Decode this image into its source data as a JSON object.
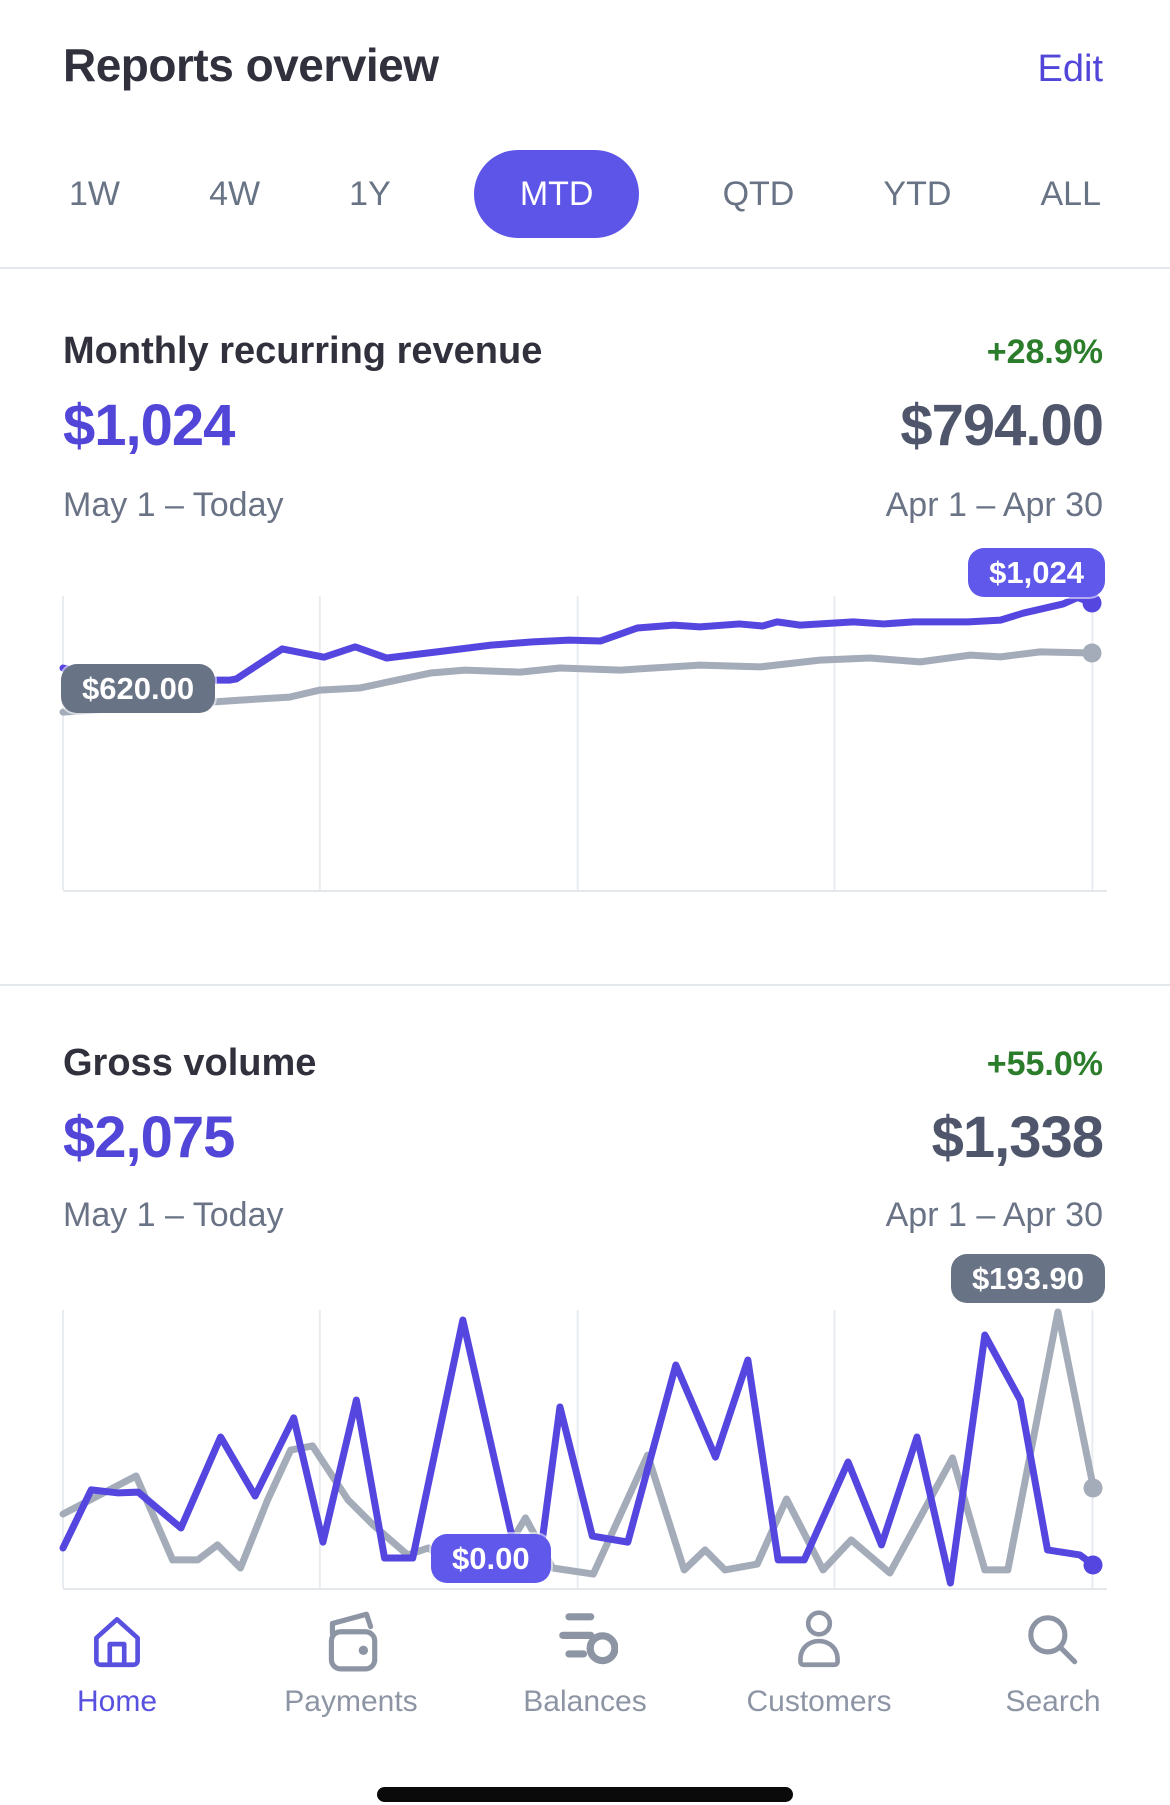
{
  "header": {
    "title": "Reports overview",
    "edit": "Edit"
  },
  "tabs": [
    {
      "label": "1W",
      "active": false
    },
    {
      "label": "4W",
      "active": false
    },
    {
      "label": "1Y",
      "active": false
    },
    {
      "label": "MTD",
      "active": true
    },
    {
      "label": "QTD",
      "active": false
    },
    {
      "label": "YTD",
      "active": false
    },
    {
      "label": "ALL",
      "active": false
    }
  ],
  "colors": {
    "accent_purple": "#5246d9",
    "pill_purple": "#5d55e7",
    "line_purple": "#5546e0",
    "line_gray": "#a3acb8",
    "tooltip_purple": "#5f58ea",
    "tooltip_gray": "#697386",
    "positive_green": "#2b7c2b",
    "nav_active": "#5851df",
    "nav_inactive": "#8d95a5"
  },
  "cards": [
    {
      "title": "Monthly recurring revenue",
      "trend": "+28.9%",
      "current_value": "$1,024",
      "previous_value": "$794.00",
      "current_period": "May 1 – Today",
      "previous_period": "Apr 1 – Apr 30",
      "tooltips": {
        "current": {
          "label": "$1,024"
        },
        "previous": {
          "label": "$620.00"
        }
      }
    },
    {
      "title": "Gross volume",
      "trend": "+55.0%",
      "current_value": "$2,075",
      "previous_value": "$1,338",
      "current_period": "May 1 – Today",
      "previous_period": "Apr 1 – Apr 30",
      "tooltips": {
        "current": {
          "label": "$0.00"
        },
        "previous": {
          "label": "$193.90"
        }
      }
    }
  ],
  "chart_data": [
    {
      "type": "line",
      "title": "Monthly recurring revenue",
      "note": "No axis labels shown; points are percent of plot box, y measured from top. Current MTD ends at $1,024; previous period starts at $620.00.",
      "gridlines_x_pct": [
        0,
        24.6,
        49.3,
        73.9,
        98.6
      ],
      "series": [
        {
          "name": "May 1 – Today",
          "color": "#5546e0",
          "end_label": "$1,024",
          "points_pct": [
            [
              0,
              24.5
            ],
            [
              2,
              26
            ],
            [
              5,
              27.5
            ],
            [
              10,
              28.6
            ],
            [
              16,
              28.6
            ],
            [
              16.6,
              28.2
            ],
            [
              21,
              18
            ],
            [
              25,
              20.8
            ],
            [
              28,
              17.3
            ],
            [
              31,
              21.1
            ],
            [
              36.5,
              18.7
            ],
            [
              41,
              16.7
            ],
            [
              45,
              15.6
            ],
            [
              48.5,
              15
            ],
            [
              51.5,
              15.3
            ],
            [
              55,
              10.9
            ],
            [
              58.5,
              9.9
            ],
            [
              61,
              10.5
            ],
            [
              64.8,
              9.5
            ],
            [
              67,
              10.2
            ],
            [
              68.4,
              8.8
            ],
            [
              70.6,
              9.9
            ],
            [
              75.7,
              8.8
            ],
            [
              78.6,
              9.5
            ],
            [
              81.5,
              8.8
            ],
            [
              86.7,
              8.8
            ],
            [
              89.8,
              8.2
            ],
            [
              92,
              5.8
            ],
            [
              95.8,
              2.7
            ],
            [
              97.2,
              0.5
            ],
            [
              98.6,
              2.4
            ]
          ]
        },
        {
          "name": "Apr 1 – Apr 30",
          "color": "#a3acb8",
          "start_label": "$620.00",
          "points_pct": [
            [
              0,
              39.5
            ],
            [
              17,
              35.4
            ],
            [
              21.7,
              34.4
            ],
            [
              24.6,
              32
            ],
            [
              28.4,
              31.3
            ],
            [
              35.2,
              26.2
            ],
            [
              38.5,
              25.2
            ],
            [
              43.8,
              25.9
            ],
            [
              47.6,
              24.5
            ],
            [
              53.4,
              25.2
            ],
            [
              61,
              23.5
            ],
            [
              66.8,
              24.1
            ],
            [
              72.5,
              21.8
            ],
            [
              77.3,
              21.1
            ],
            [
              82.1,
              22.4
            ],
            [
              86.9,
              20.1
            ],
            [
              89.8,
              20.7
            ],
            [
              93.6,
              19
            ],
            [
              98.6,
              19.4
            ]
          ]
        }
      ]
    },
    {
      "type": "line",
      "title": "Gross volume",
      "note": "Spiky daily series; current day value $0.00; previous series peak near right labeled $193.90.",
      "gridlines_x_pct": [
        0,
        24.6,
        49.3,
        73.9,
        98.6
      ],
      "series": [
        {
          "name": "May 1 – Today",
          "color": "#5546e0",
          "end_label": "$0.00",
          "points_pct": [
            [
              0,
              85.6
            ],
            [
              2.7,
              64.7
            ],
            [
              5.3,
              65.8
            ],
            [
              7.2,
              65.5
            ],
            [
              11.3,
              78.4
            ],
            [
              15.1,
              45.7
            ],
            [
              18.4,
              66.9
            ],
            [
              22.1,
              38.8
            ],
            [
              24.9,
              83.5
            ],
            [
              28.1,
              32.4
            ],
            [
              30.8,
              89.2
            ],
            [
              33.5,
              89.2
            ],
            [
              38.3,
              3.6
            ],
            [
              43.6,
              91.4
            ],
            [
              45.6,
              91.4
            ],
            [
              47.6,
              34.9
            ],
            [
              50.7,
              81.3
            ],
            [
              54.1,
              83.5
            ],
            [
              58.7,
              19.8
            ],
            [
              62.5,
              52.9
            ],
            [
              65.6,
              18
            ],
            [
              68.5,
              89.9
            ],
            [
              71,
              89.9
            ],
            [
              75.2,
              54.7
            ],
            [
              78.4,
              84.5
            ],
            [
              81.8,
              45.7
            ],
            [
              85,
              98.2
            ],
            [
              88.3,
              9
            ],
            [
              91.7,
              32.4
            ],
            [
              94.3,
              86.3
            ],
            [
              97.4,
              88.1
            ],
            [
              98.7,
              91.7
            ]
          ]
        },
        {
          "name": "Apr 1 – Apr 30",
          "color": "#a3acb8",
          "peak_label": "$193.90",
          "points_pct": [
            [
              0,
              73.4
            ],
            [
              7,
              59.7
            ],
            [
              10.5,
              89.9
            ],
            [
              12.9,
              89.9
            ],
            [
              14.8,
              84.5
            ],
            [
              17,
              92.8
            ],
            [
              19.6,
              68.3
            ],
            [
              21.8,
              50.4
            ],
            [
              23.9,
              48.9
            ],
            [
              27.3,
              68.3
            ],
            [
              29.7,
              77.3
            ],
            [
              33,
              88.1
            ],
            [
              35,
              85.6
            ],
            [
              37.8,
              92.8
            ],
            [
              41.2,
              94.2
            ],
            [
              44.3,
              74.8
            ],
            [
              46.9,
              92.8
            ],
            [
              50.8,
              95
            ],
            [
              56,
              52.2
            ],
            [
              59.5,
              93.5
            ],
            [
              61.5,
              86.3
            ],
            [
              63.4,
              93.5
            ],
            [
              66.5,
              91.4
            ],
            [
              69.3,
              68
            ],
            [
              72.8,
              93.5
            ],
            [
              75.5,
              82.7
            ],
            [
              79.2,
              94.6
            ],
            [
              85.2,
              53.2
            ],
            [
              88.3,
              93.5
            ],
            [
              90.5,
              93.5
            ],
            [
              95.3,
              0.7
            ],
            [
              98.7,
              64
            ]
          ]
        }
      ]
    }
  ],
  "nav": [
    {
      "label": "Home",
      "icon": "home-icon",
      "active": true
    },
    {
      "label": "Payments",
      "icon": "wallet-icon",
      "active": false
    },
    {
      "label": "Balances",
      "icon": "balances-icon",
      "active": false
    },
    {
      "label": "Customers",
      "icon": "customers-icon",
      "active": false
    },
    {
      "label": "Search",
      "icon": "search-icon",
      "active": false
    }
  ]
}
